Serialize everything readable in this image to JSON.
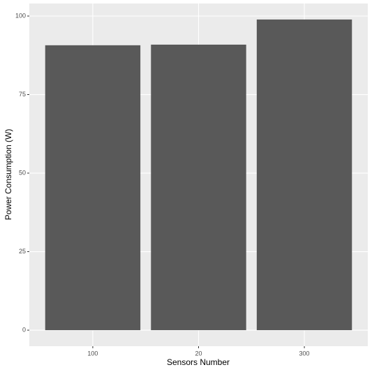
{
  "chart_data": {
    "type": "bar",
    "x_label": "Sensors Number",
    "y_label": "Power Consumption (W)",
    "categories": [
      "100",
      "20",
      "300"
    ],
    "values": [
      90.7,
      90.9,
      98.9
    ],
    "color": "#595959",
    "ylim": [
      -5.1,
      104
    ],
    "yticks": [
      0,
      25,
      50,
      75,
      100
    ],
    "grid": true
  }
}
